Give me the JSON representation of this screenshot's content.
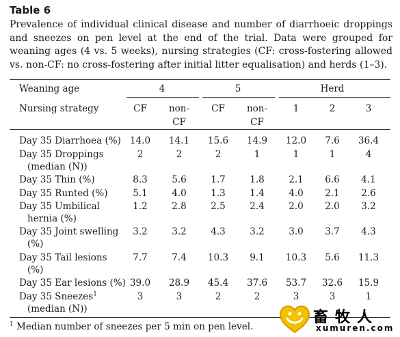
{
  "title": "Table 6",
  "caption": "Prevalence of individual clinical disease and number of diarrhoeic droppings and sneezes on pen level at the end of the trial. Data were grouped for weaning ages (4 vs. 5 weeks), nursing strategies (CF: cross-fostering allowed vs. non-CF: no cross-fostering after initial litter equalisation) and herds (1–3).",
  "header": {
    "weaning_age_label": "Weaning age",
    "nursing_strategy_label": "Nursing strategy",
    "group_4": "4",
    "group_5": "5",
    "group_herd": "Herd",
    "sub": [
      "CF",
      "non-",
      "CF",
      "non-",
      "1",
      "2",
      "3"
    ],
    "sub_line2": [
      "",
      "CF",
      "",
      "CF",
      "",
      "",
      ""
    ]
  },
  "rows": [
    {
      "line1": "Day 35 Diarrhoea (%)",
      "line2": "",
      "values": [
        "14.0",
        "14.1",
        "15.6",
        "14.9",
        "12.0",
        "7.6",
        "36.4"
      ]
    },
    {
      "line1": "Day 35 Droppings",
      "line2": "(median (N))",
      "values": [
        "2",
        "2",
        "2",
        "1",
        "1",
        "1",
        "4"
      ]
    },
    {
      "line1": "Day 35 Thin (%)",
      "line2": "",
      "values": [
        "8.3",
        "5.6",
        "1.7",
        "1.8",
        "2.1",
        "6.6",
        "4.1"
      ]
    },
    {
      "line1": "Day 35 Runted (%)",
      "line2": "",
      "values": [
        "5.1",
        "4.0",
        "1.3",
        "1.4",
        "4.0",
        "2.1",
        "2.6"
      ]
    },
    {
      "line1": "Day 35 Umbilical",
      "line2": "hernia (%)",
      "values": [
        "1.2",
        "2.8",
        "2.5",
        "2.4",
        "2.0",
        "2.0",
        "3.2"
      ]
    },
    {
      "line1": "Day 35 Joint swelling",
      "line2": "(%)",
      "values": [
        "3.2",
        "3.2",
        "4.3",
        "3.2",
        "3.0",
        "3.7",
        "4.3"
      ]
    },
    {
      "line1": "Day 35 Tail lesions",
      "line2": "(%)",
      "values": [
        "7.7",
        "7.4",
        "10.3",
        "9.1",
        "10.3",
        "5.6",
        "11.3"
      ]
    },
    {
      "line1": "Day 35 Ear lesions (%)",
      "line2": "",
      "values": [
        "39.0",
        "28.9",
        "45.4",
        "37.6",
        "53.7",
        "32.6",
        "15.9"
      ]
    },
    {
      "line1": "Day 35 Sneezes",
      "sup": "1",
      "line2": "(median (N))",
      "values": [
        "3",
        "3",
        "2",
        "2",
        "3",
        "3",
        "1"
      ]
    }
  ],
  "footnote": {
    "mark": "1",
    "text": "Median number of sneezes per 5 min on pen level."
  },
  "watermark": {
    "zh": "畜牧人",
    "en": "xumuren.com"
  }
}
